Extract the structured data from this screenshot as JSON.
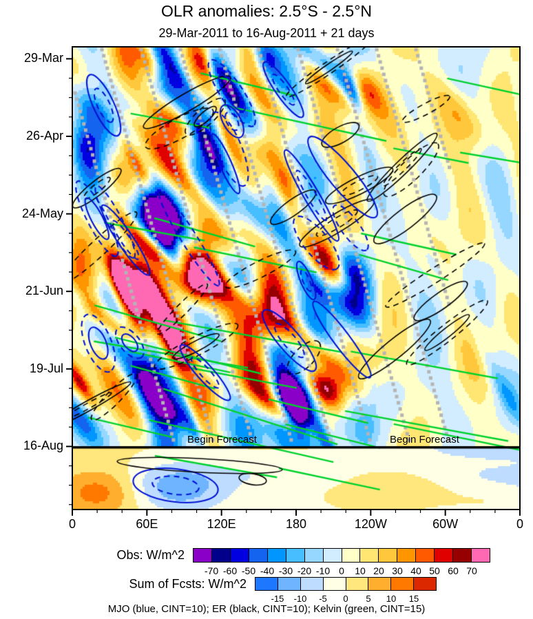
{
  "title": "OLR anomalies: 2.5°S - 2.5°N",
  "subtitle": "29-Mar-2011 to 16-Aug-2011 + 21 days",
  "chart_data": {
    "type": "heatmap",
    "variant": "hovmoller-longitude-time",
    "title": "OLR anomalies: 2.5°S - 2.5°N",
    "subtitle": "29-Mar-2011 to 16-Aug-2011 + 21 days",
    "field_units": "W/m^2",
    "x_axis": {
      "ticks": [
        "0",
        "60E",
        "120E",
        "180",
        "120W",
        "60W",
        "0"
      ],
      "minor_ticks_per_interval": 2,
      "range_deg": [
        0,
        360
      ]
    },
    "y_axis": {
      "ticks": [
        "29-Mar",
        "26-Apr",
        "24-May",
        "21-Jun",
        "19-Jul",
        "16-Aug"
      ],
      "tick_interval_days": 28,
      "minor_tick_interval_days": 7,
      "forecast_extension_days": 21,
      "direction": "time-increases-downward"
    },
    "annotations": [
      {
        "text": "Begin Forecast"
      },
      {
        "text": "Begin Forecast"
      }
    ],
    "colorbars": [
      {
        "label": "Obs: W/m^2",
        "ticks": [
          -70,
          -60,
          -50,
          -40,
          -30,
          -20,
          -10,
          0,
          10,
          20,
          30,
          40,
          50,
          60,
          70
        ],
        "colors": [
          "#8b00c8",
          "#00008b",
          "#0000e1",
          "#1464f0",
          "#0096ff",
          "#46beff",
          "#96d7ff",
          "#d2edff",
          "#ffffc8",
          "#ffe673",
          "#ffc83c",
          "#ff9600",
          "#ff5a00",
          "#e10000",
          "#960000",
          "#ff69b4"
        ]
      },
      {
        "label": "Sum of Fcsts: W/m^2",
        "ticks": [
          -15,
          -10,
          -5,
          0,
          5,
          10,
          15
        ],
        "colors": [
          "#1e78ff",
          "#6eb4ff",
          "#bedcff",
          "#ffffe6",
          "#ffe67d",
          "#ffaf2d",
          "#ff7800",
          "#dc2800"
        ]
      }
    ],
    "contour_legend": {
      "text": "MJO (blue, CINT=10); ER (black, CINT=10); Kelvin (green, CINT=15)",
      "series": [
        {
          "name": "MJO",
          "color": "blue",
          "cint": 10
        },
        {
          "name": "ER",
          "color": "black",
          "cint": 10
        },
        {
          "name": "Kelvin",
          "color": "green",
          "cint": 15
        }
      ]
    },
    "overlay_colors": {
      "mjo_contour": "#0014d2",
      "er_contour": "#000000",
      "kelvin_line": "#00d22d",
      "stipple_gray": "#b4b4b4"
    }
  }
}
